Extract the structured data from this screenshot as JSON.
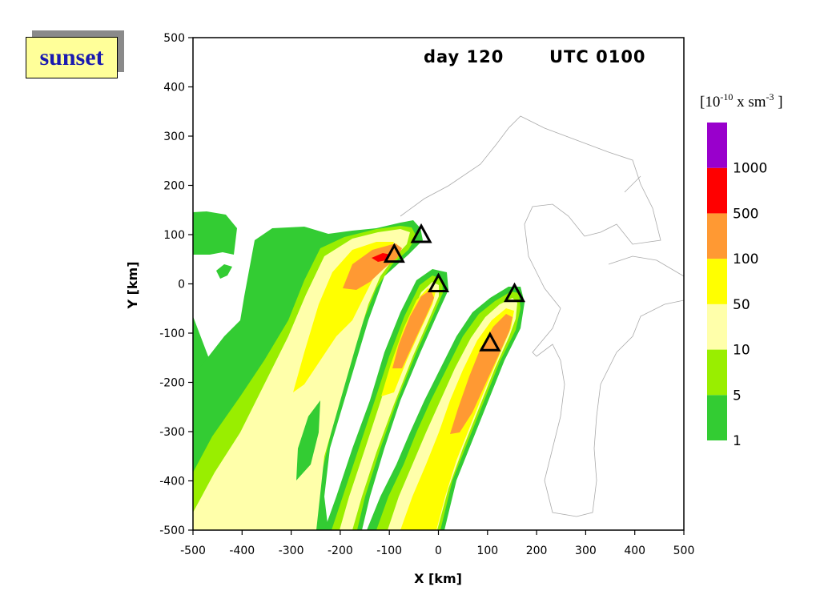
{
  "badge": {
    "text": "sunset",
    "background": "#ffff99",
    "text_color": "#1a1ab0"
  },
  "chart_data": {
    "type": "heatmap",
    "title_left": "day 120",
    "title_right": "UTC 0100",
    "xlabel": "X [km]",
    "ylabel": "Y [km]",
    "xlim": [
      -500,
      500
    ],
    "ylim": [
      -500,
      500
    ],
    "xticks": [
      -500,
      -400,
      -300,
      -200,
      -100,
      0,
      100,
      200,
      300,
      400,
      500
    ],
    "yticks": [
      -500,
      -400,
      -300,
      -200,
      -100,
      0,
      100,
      200,
      300,
      400,
      500
    ],
    "colorbar": {
      "unit_base": "[10",
      "unit_exp1": "-10",
      "unit_mid": " x sm",
      "unit_exp2": "-3",
      "unit_end": " ]",
      "labels": [
        "1",
        "5",
        "10",
        "50",
        "100",
        "500",
        "1000"
      ],
      "colors": [
        "#33cc33",
        "#99ee00",
        "#ffffaa",
        "#ffff00",
        "#ff9933",
        "#ff0000",
        "#9900cc"
      ]
    },
    "sources": [
      {
        "x": -35,
        "y": 100
      },
      {
        "x": -90,
        "y": 60
      },
      {
        "x": 0,
        "y": 0
      },
      {
        "x": 155,
        "y": -20
      },
      {
        "x": 105,
        "y": -120
      }
    ]
  }
}
